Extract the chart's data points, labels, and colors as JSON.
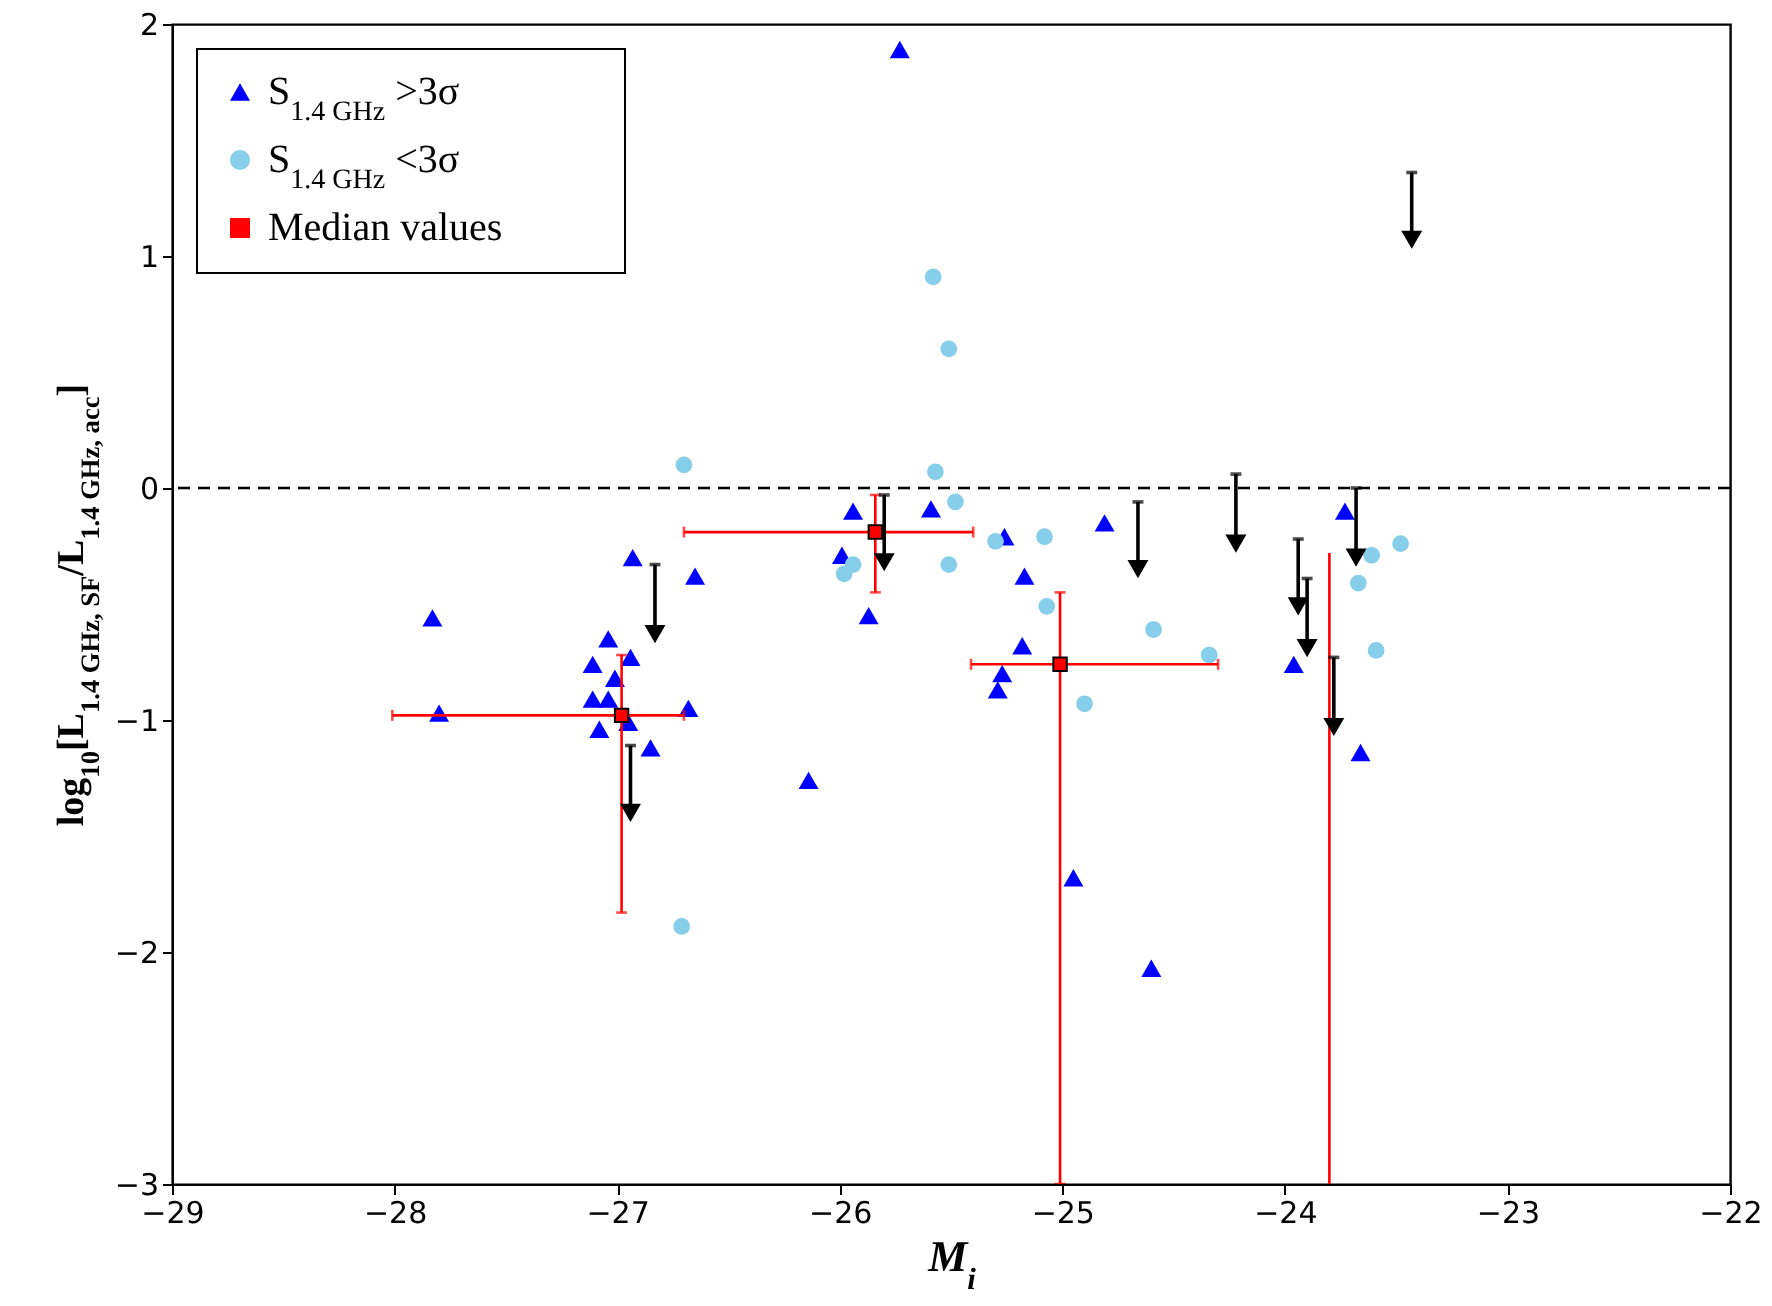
{
  "chart_data": {
    "type": "scatter",
    "xlabel": "M$_{i}$",
    "ylabel": "log$_{10}$[L$_{1.4 GHz, SF}$/L$_{1.4 GHz, acc}$]",
    "xlim": [
      -29,
      -22
    ],
    "xticks": [
      -29,
      -28,
      -27,
      -26,
      -25,
      -24,
      -23,
      -22
    ],
    "ylim": [
      -3,
      2
    ],
    "yticks": [
      -3,
      -2,
      -1,
      0,
      1,
      2
    ],
    "legend": "top left",
    "series": [
      {
        "name": "S$_{1.4 GHz}$ >3σ",
        "color": "#0000ff",
        "marker": "triangle",
        "x": [
          -27.83,
          -27.8,
          -26.93,
          -26.65,
          -27.04,
          -27.11,
          -26.94,
          -27.01,
          -27.11,
          -27.04,
          -27.08,
          -26.95,
          -26.85,
          -26.68,
          -26.14,
          -25.94,
          -25.99,
          -25.73,
          -25.59,
          -25.87,
          -25.26,
          -25.17,
          -24.81,
          -25.18,
          -25.27,
          -25.29,
          -24.95,
          -24.6,
          -23.96,
          -23.73,
          -23.66
        ],
        "values": [
          -0.56,
          -0.97,
          -0.3,
          -0.38,
          -0.65,
          -0.76,
          -0.73,
          -0.82,
          -0.91,
          -0.91,
          -1.04,
          -1.01,
          -1.12,
          -0.95,
          -1.26,
          -0.1,
          -0.29,
          1.89,
          -0.09,
          -0.55,
          -0.21,
          -0.38,
          -0.15,
          -0.68,
          -0.8,
          -0.87,
          -1.68,
          -2.07,
          -0.76,
          -0.1,
          -1.14
        ]
      },
      {
        "name": "S$_{1.4 GHz}$ <3σ",
        "color": "#87ceeb",
        "marker": "circle",
        "x": [
          -26.7,
          -25.94,
          -25.98,
          -26.71,
          -25.58,
          -25.51,
          -25.57,
          -25.48,
          -25.51,
          -25.3,
          -25.08,
          -25.07,
          -24.59,
          -24.34,
          -24.9,
          -23.61,
          -23.48,
          -23.67,
          -23.59
        ],
        "values": [
          0.1,
          -0.33,
          -0.37,
          -1.89,
          0.91,
          0.6,
          0.07,
          -0.06,
          -0.33,
          -0.23,
          -0.21,
          -0.51,
          -0.61,
          -0.72,
          -0.93,
          -0.29,
          -0.24,
          -0.41,
          -0.7
        ]
      },
      {
        "name": "Median values",
        "color": "#ff0000",
        "marker": "square",
        "x": [
          -26.98,
          -25.84,
          -25.01
        ],
        "values": [
          -0.98,
          -0.19,
          -0.76
        ],
        "errors": [
          [
            -1.83,
            -0.72
          ],
          [
            -0.45,
            -0.03
          ],
          [
            -3,
            -0.45
          ]
        ],
        "xerrors": [
          [
            -28.01,
            -26.7
          ],
          [
            -26.7,
            -25.4
          ],
          [
            -25.41,
            -24.3
          ]
        ]
      },
      {
        "type": "line",
        "color": "#ff0000",
        "marker": "none",
        "x": [
          -23.8,
          -23.8
        ],
        "values": [
          -3,
          -0.28
        ]
      },
      {
        "color": "#000000",
        "marker": "triangle",
        "x": [
          -26.83,
          -26.94,
          -25.8,
          -24.66,
          -24.22,
          -23.43,
          -23.68,
          -23.94,
          -23.9,
          -23.78
        ],
        "values": [
          -0.63,
          -1.4,
          -0.32,
          -0.35,
          -0.24,
          1.07,
          -0.3,
          -0.51,
          -0.69,
          -1.03
        ],
        "errors": [
          [
            -0.63,
            -0.33
          ],
          [
            -1.4,
            -1.11
          ],
          [
            -0.32,
            -0.03
          ],
          [
            -0.35,
            -0.06
          ],
          [
            -0.24,
            0.06
          ],
          [
            1.07,
            1.36
          ],
          [
            -0.3,
            0
          ],
          [
            -0.51,
            -0.22
          ],
          [
            -0.69,
            -0.39
          ],
          [
            -1.03,
            -0.73
          ]
        ]
      }
    ],
    "ref_lines": [
      {
        "axis": "y",
        "value": 0,
        "color": "#000000",
        "line_style": "dashed"
      }
    ]
  }
}
